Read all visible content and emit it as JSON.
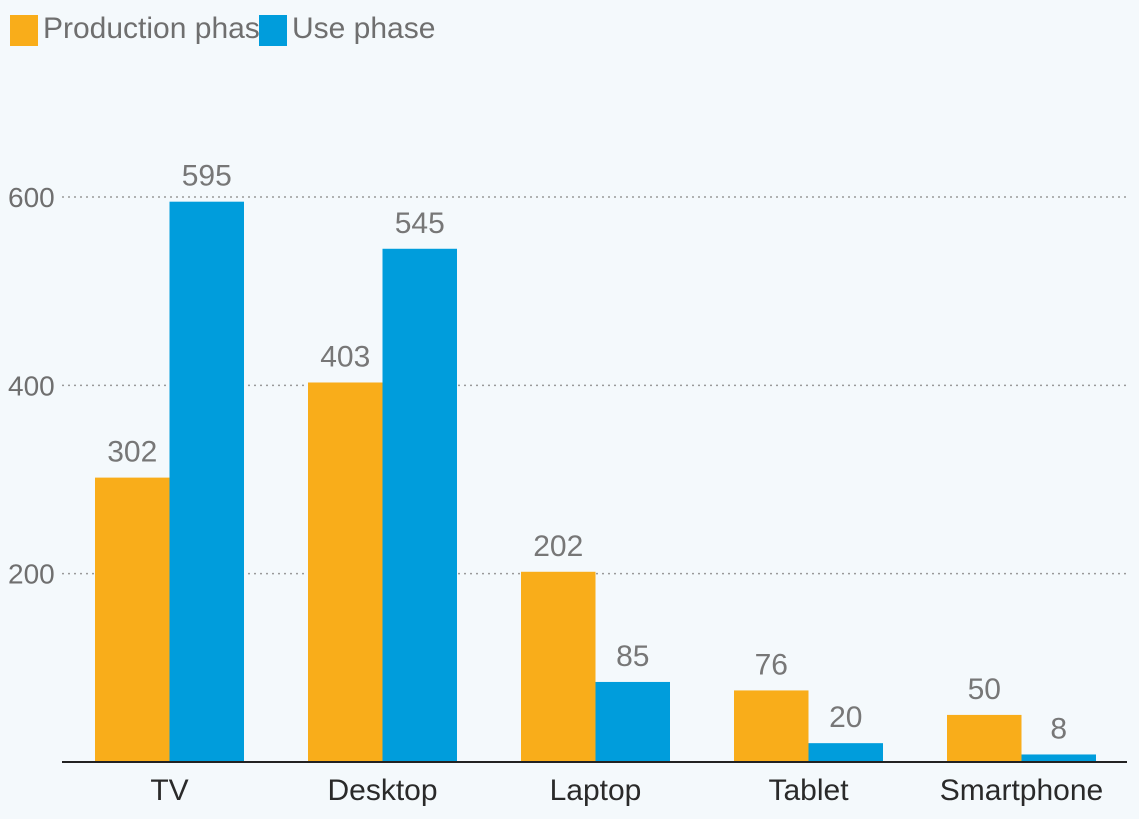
{
  "chart_data": {
    "type": "bar",
    "categories": [
      "TV",
      "Desktop",
      "Laptop",
      "Tablet",
      "Smartphone"
    ],
    "series": [
      {
        "name": "Production phase",
        "color": "#f9ad1a",
        "values": [
          302,
          403,
          202,
          76,
          50
        ]
      },
      {
        "name": "Use phase",
        "color": "#009ddc",
        "values": [
          595,
          545,
          85,
          20,
          8
        ]
      }
    ],
    "yticks": [
      200,
      400,
      600
    ],
    "ylim": [
      0,
      700
    ],
    "grid": true,
    "legend_position": "top-left",
    "xlabel": "",
    "ylabel": "",
    "title": ""
  }
}
